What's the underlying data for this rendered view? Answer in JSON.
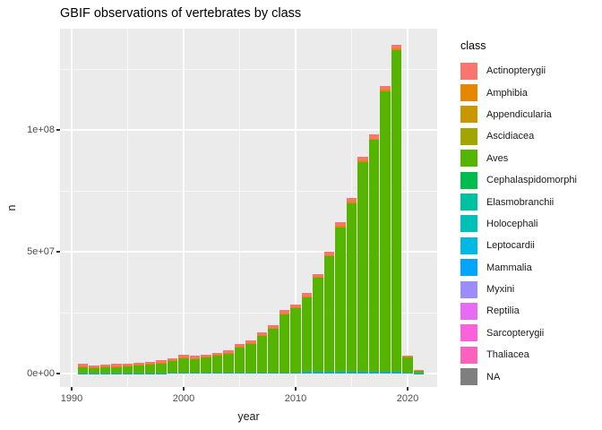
{
  "title": "GBIF observations of vertebrates by class",
  "axes": {
    "x_label": "year",
    "y_label": "n",
    "x_ticks": [
      "1990",
      "2000",
      "2010",
      "2020"
    ],
    "y_ticks": [
      "0e+00",
      "5e+07",
      "1e+08"
    ]
  },
  "legend": {
    "title": "class",
    "items": [
      {
        "label": "Actinopterygii",
        "color": "#F8766D"
      },
      {
        "label": "Amphibia",
        "color": "#E58700"
      },
      {
        "label": "Appendicularia",
        "color": "#C99800"
      },
      {
        "label": "Ascidiacea",
        "color": "#A3A500"
      },
      {
        "label": "Aves",
        "color": "#55B400"
      },
      {
        "label": "Cephalaspidomorphi",
        "color": "#00BB4E"
      },
      {
        "label": "Elasmobranchii",
        "color": "#00C19F"
      },
      {
        "label": "Holocephali",
        "color": "#00C0B8"
      },
      {
        "label": "Leptocardii",
        "color": "#00B9E3"
      },
      {
        "label": "Mammalia",
        "color": "#00A5FF"
      },
      {
        "label": "Myxini",
        "color": "#9C8DFF"
      },
      {
        "label": "Reptilia",
        "color": "#E76BF3"
      },
      {
        "label": "Sarcopterygii",
        "color": "#FA62DB"
      },
      {
        "label": "Thaliacea",
        "color": "#FF62BC"
      },
      {
        "label": "NA",
        "color": "#7F7F7F"
      }
    ]
  },
  "style_colors": {
    "panel_background": "#EBEBEB",
    "gridline": "#FFFFFF",
    "axis_text": "#4D4D4D",
    "tick_mark": "#333333"
  },
  "chart_data": {
    "type": "bar",
    "stacked": true,
    "stack_order": "first series listed appears on top of each bar",
    "title": "GBIF observations of vertebrates by class",
    "xlabel": "year",
    "ylabel": "n",
    "x": [
      1991,
      1992,
      1993,
      1994,
      1995,
      1996,
      1997,
      1998,
      1999,
      2000,
      2001,
      2002,
      2003,
      2004,
      2005,
      2006,
      2007,
      2008,
      2009,
      2010,
      2011,
      2012,
      2013,
      2014,
      2015,
      2016,
      2017,
      2018,
      2019,
      2020,
      2021
    ],
    "xlim": [
      1989,
      2023
    ],
    "ylim": [
      0,
      140000000
    ],
    "x_ticks_major": [
      1990,
      2000,
      2010,
      2020
    ],
    "x_ticks_minor": [
      1995,
      2005,
      2015
    ],
    "y_ticks_major": [
      0,
      50000000,
      100000000
    ],
    "y_ticks_minor": [
      25000000,
      75000000,
      125000000
    ],
    "grid": true,
    "legend_position": "right",
    "note": "Values estimated from pixel heights; only Actinopterygii (top cap), Amphibia (thin line), Aves (main body) and Mammalia (bottom sliver) are large enough to be visible in the bars; the other legend classes are below pixel resolution.",
    "series": [
      {
        "name": "Actinopterygii",
        "color": "#F8766D",
        "values": [
          900000,
          800000,
          850000,
          850000,
          900000,
          900000,
          950000,
          1000000,
          1000000,
          1050000,
          950000,
          1000000,
          1050000,
          1100000,
          1150000,
          1100000,
          1200000,
          1200000,
          1300000,
          1200000,
          1200000,
          1300000,
          1300000,
          1400000,
          1400000,
          1500000,
          1500000,
          1500000,
          1500000,
          300000,
          60000
        ]
      },
      {
        "name": "Amphibia",
        "color": "#E58700",
        "values": [
          150000,
          150000,
          150000,
          150000,
          150000,
          150000,
          150000,
          150000,
          150000,
          200000,
          200000,
          250000,
          250000,
          300000,
          300000,
          300000,
          350000,
          350000,
          400000,
          400000,
          450000,
          500000,
          500000,
          550000,
          600000,
          650000,
          650000,
          700000,
          700000,
          150000,
          30000
        ]
      },
      {
        "name": "Aves",
        "color": "#55B400",
        "values": [
          2850000,
          2350000,
          2700000,
          2800000,
          3050000,
          3350000,
          3700000,
          4350000,
          5000000,
          6150000,
          5850000,
          6300000,
          6950000,
          7900000,
          10300000,
          11650000,
          14950000,
          17950000,
          23750000,
          26350000,
          30750000,
          38550000,
          47500000,
          59350000,
          69250000,
          86100000,
          95050000,
          115000000,
          132000000,
          6700000,
          1460000
        ]
      },
      {
        "name": "Mammalia",
        "color": "#00A5FF",
        "values": [
          100000,
          100000,
          100000,
          100000,
          100000,
          100000,
          100000,
          100000,
          250000,
          300000,
          300000,
          350000,
          350000,
          400000,
          450000,
          450000,
          500000,
          500000,
          550000,
          550000,
          600000,
          650000,
          700000,
          700000,
          750000,
          750000,
          800000,
          800000,
          800000,
          250000,
          50000
        ]
      }
    ],
    "totals": [
      4000000,
      3400000,
      3800000,
      3900000,
      4200000,
      4500000,
      4900000,
      5600000,
      6400000,
      7700000,
      7300000,
      7900000,
      8600000,
      9700000,
      12200000,
      13500000,
      17000000,
      20000000,
      26000000,
      28500000,
      33000000,
      41000000,
      50000000,
      62000000,
      72000000,
      89000000,
      98000000,
      118000000,
      135000000,
      7400000,
      1600000
    ]
  }
}
